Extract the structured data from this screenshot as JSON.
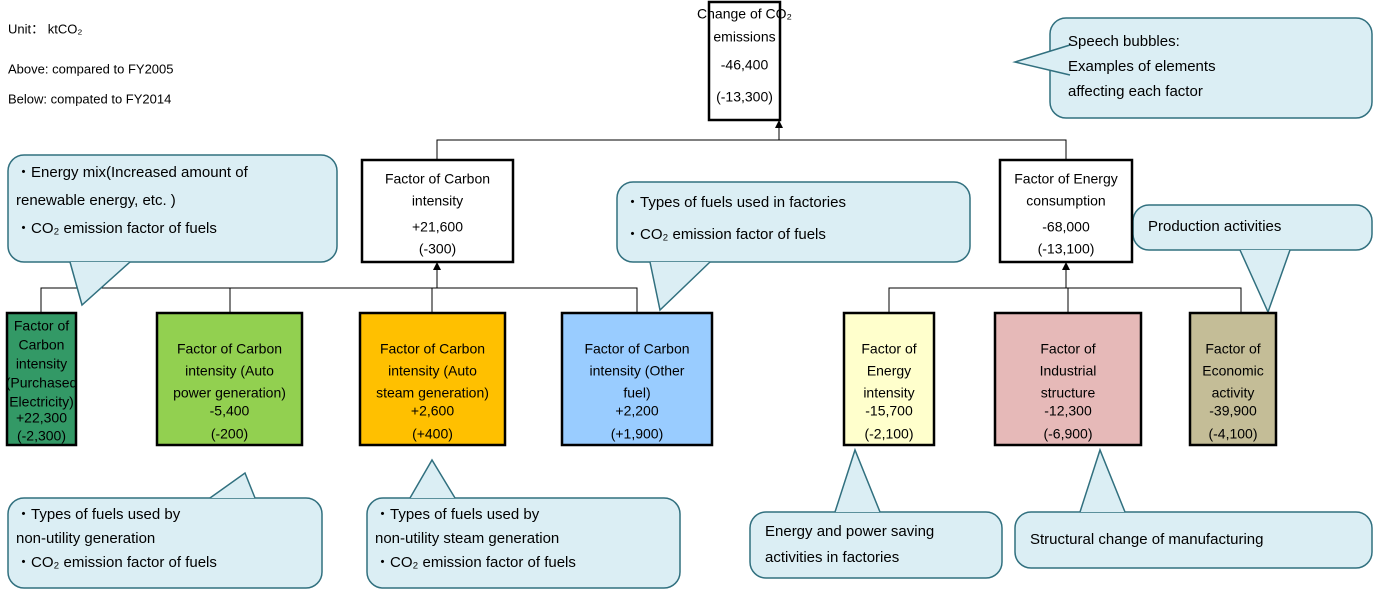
{
  "notes": [
    "Unit： ktCO₂",
    "Above: compared to FY2005",
    "Below: compated to FY2014"
  ],
  "nodes": [
    {
      "label": [
        "Change of CO₂",
        "emissions"
      ],
      "above": "-46,400",
      "below": "(-13,300)"
    },
    {
      "label": [
        "Factor of Carbon",
        "intensity"
      ],
      "above": "+21,600",
      "below": "(-300)"
    },
    {
      "label": [
        "Factor of Energy",
        "consumption"
      ],
      "above": "-68,000",
      "below": "(-13,100)"
    },
    {
      "label": [
        "Factor of",
        "Carbon",
        "intensity",
        "(Purchased",
        "Electricity)"
      ],
      "above": "+22,300",
      "below": "(-2,300)"
    },
    {
      "label": [
        "Factor of Carbon",
        "intensity (Auto",
        "power generation)"
      ],
      "above": "-5,400",
      "below": "(-200)"
    },
    {
      "label": [
        "Factor of Carbon",
        "intensity (Auto",
        "steam generation)"
      ],
      "above": "+2,600",
      "below": "(+400)"
    },
    {
      "label": [
        "Factor of Carbon",
        "intensity (Other",
        "fuel)"
      ],
      "above": "+2,200",
      "below": "(+1,900)"
    },
    {
      "label": [
        "Factor of",
        "Energy",
        "intensity"
      ],
      "above": "-15,700",
      "below": "(-2,100)"
    },
    {
      "label": [
        "Factor of",
        "Industrial",
        "structure"
      ],
      "above": "-12,300",
      "below": "(-6,900)"
    },
    {
      "label": [
        "Factor of",
        "Economic",
        "activity"
      ],
      "above": "-39,900",
      "below": "(-4,100)"
    }
  ],
  "bubbles": [
    {
      "lines": [
        "Speech bubbles:",
        "Examples of elements",
        "affecting each factor"
      ]
    },
    {
      "lines": [
        "・Energy mix(Increased amount of",
        "renewable energy, etc. )",
        "・CO₂ emission factor of fuels"
      ]
    },
    {
      "lines": [
        "・Types of fuels used in factories",
        "・CO₂ emission factor of fuels"
      ]
    },
    {
      "lines": [
        "Production activities"
      ]
    },
    {
      "lines": [
        "・Types of fuels used by",
        "non-utility generation",
        "・CO₂ emission factor of fuels"
      ]
    },
    {
      "lines": [
        "・Types of fuels used by",
        "non-utility steam generation",
        "・CO₂ emission factor of fuels"
      ]
    },
    {
      "lines": [
        "Energy and power saving",
        "activities in factories"
      ]
    },
    {
      "lines": [
        "Structural change of manufacturing"
      ]
    }
  ]
}
